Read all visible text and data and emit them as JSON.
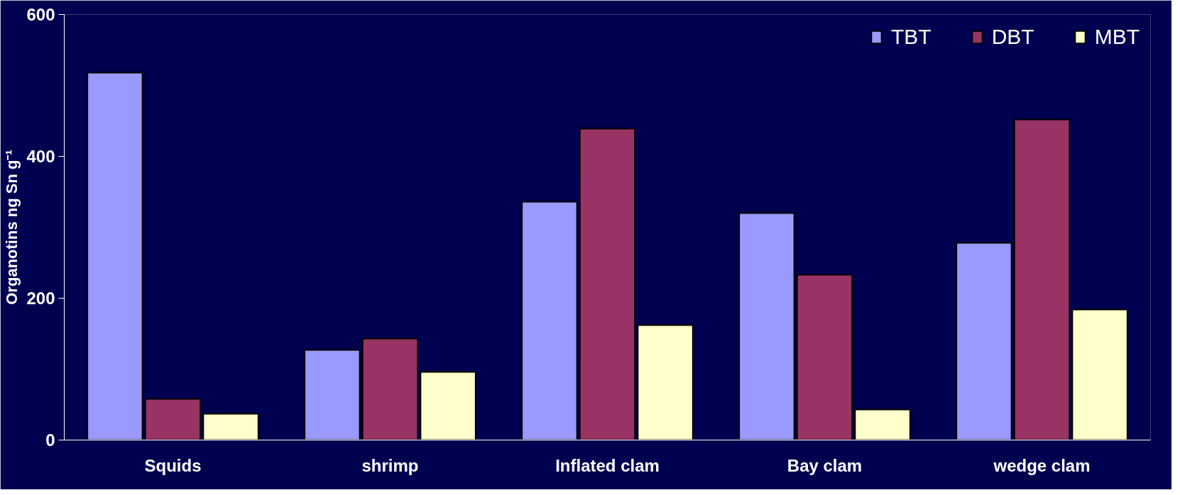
{
  "chart_data": {
    "type": "bar",
    "ylabel": "Organotins ng Sn g⁻¹",
    "categories": [
      "Squids",
      "shrimp",
      "Inflated clam",
      "Bay clam",
      "wedge clam"
    ],
    "series": [
      {
        "name": "TBT",
        "color": "#9999ff",
        "values": [
          518,
          127,
          336,
          320,
          278
        ]
      },
      {
        "name": "DBT",
        "color": "#993366",
        "values": [
          58,
          143,
          439,
          233,
          452
        ]
      },
      {
        "name": "MBT",
        "color": "#ffffcc",
        "values": [
          37,
          96,
          162,
          43,
          184
        ]
      }
    ],
    "ylim": [
      0,
      600
    ],
    "yticks": [
      0,
      200,
      400,
      600
    ],
    "grid": false,
    "legend": "top right"
  }
}
